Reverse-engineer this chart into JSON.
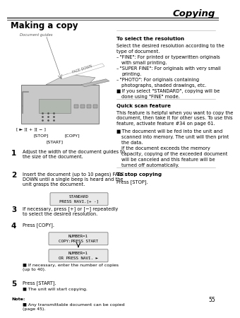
{
  "page_num": "55",
  "chapter_title": "Copying",
  "section_title": "Making a copy",
  "bg_color": "#ffffff",
  "col_split": 0.505,
  "fax_img_placeholder": true,
  "steps": [
    {
      "num": "1",
      "text": "Adjust the width of the document guides to\nthe size of the document."
    },
    {
      "num": "2",
      "text": "Insert the document (up to 10 pages) FACE\nDOWN until a single beep is heard and the\nunit grasps the document."
    },
    {
      "num": "3",
      "text": "If necessary, press [+] or [−] repeatedly\nto select the desired resolution."
    },
    {
      "num": "4",
      "text": "Press [COPY]."
    },
    {
      "num": "5",
      "text": "Press [START]."
    }
  ],
  "step2_display": "STANDARD\nPRESS NAVI.[+ -]",
  "step4_display1": "NUMBER=1\nCOPY:PRESS START",
  "step4_display2": "NUMBER=1\nOR PRESS NAVI. ►",
  "step4_bullet": "If necessary, enter the number of copies\n(up to 40).",
  "step5_bullet": "The unit will start copying.",
  "note_label": "Note:",
  "note_text": "Any transmittable document can be copied\n(page 45).",
  "right_sec1_title": "To select the resolution",
  "right_sec1_body": "Select the desired resolution according to the\ntype of document.",
  "right_sec1_items": [
    [
      "–",
      "\"FINE\": For printed or typewritten originals\nwith small printing."
    ],
    [
      "–",
      "\"SUPER FINE\": For originals with very small\nprinting."
    ],
    [
      "–",
      "\"PHOTO\": For originals containing\nphotographs, shaded drawings, etc."
    ],
    [
      "■",
      "If you select \"STANDARD\", copying will be\ndone using \"FINE\" mode."
    ]
  ],
  "right_sec2_title": "Quick scan feature",
  "right_sec2_body": "This feature is helpful when you want to copy the\ndocument, then take it for other uses. To use this\nfeature, activate feature #34 on page 61.",
  "right_sec2_items": [
    [
      "■",
      "The document will be fed into the unit and\nscanned into memory. The unit will then print\nthe data.\nIf the document exceeds the memory\ncapacity, copying of the exceeded document\nwill be canceled and this feature will be\nturned off automatically."
    ]
  ],
  "right_sec3_title": "To stop copying",
  "right_sec3_body": "Press [STOP]."
}
